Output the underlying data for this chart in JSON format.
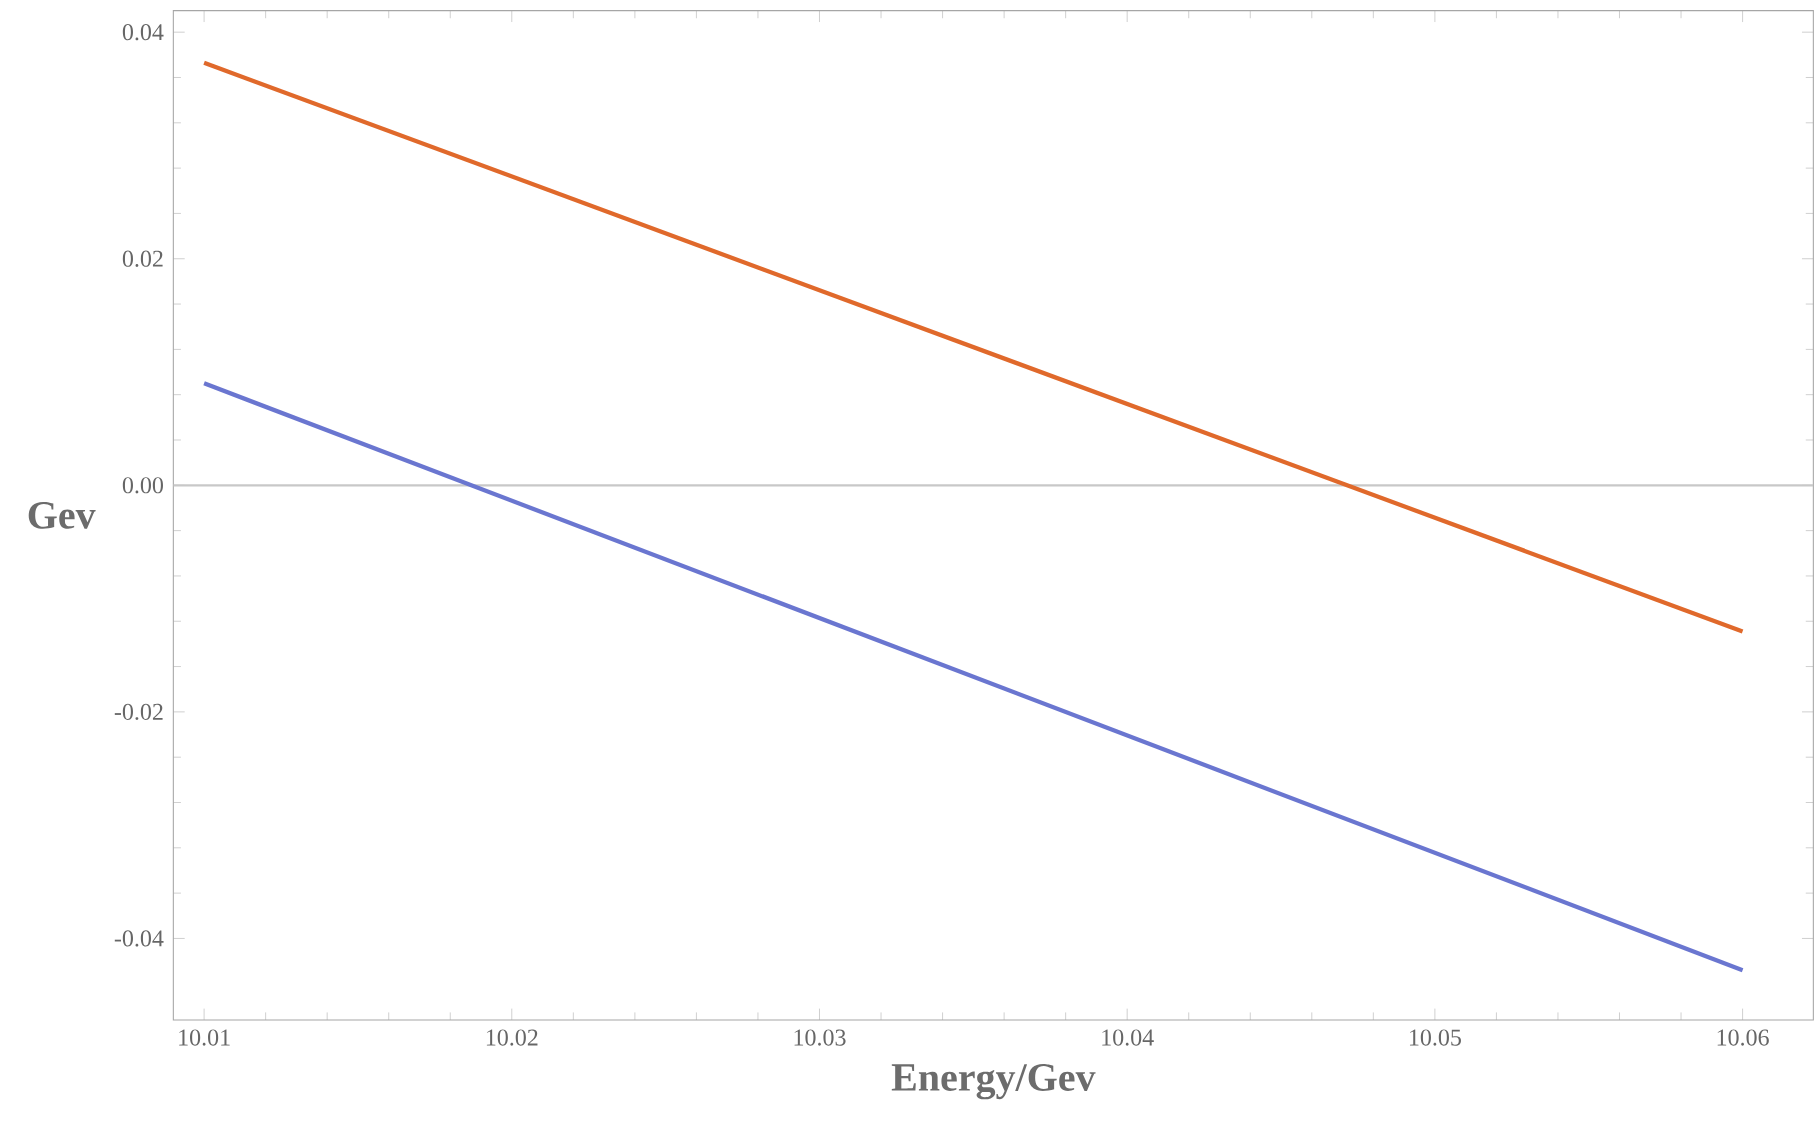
{
  "chart_data": {
    "type": "line",
    "xlabel": "Energy/Gev",
    "ylabel": "Gev",
    "x": [
      10.01,
      10.06
    ],
    "series": [
      {
        "color": "#e0692b",
        "values": [
          0.0373,
          -0.0129
        ]
      },
      {
        "color": "#6a76d0",
        "values": [
          0.009,
          -0.0428
        ]
      }
    ],
    "xlim": [
      10.009,
      10.0623
    ],
    "ylim": [
      -0.0472,
      0.0419
    ],
    "xticks": [
      {
        "value": 10.01,
        "label": "10.01"
      },
      {
        "value": 10.02,
        "label": "10.02"
      },
      {
        "value": 10.03,
        "label": "10.03"
      },
      {
        "value": 10.04,
        "label": "10.04"
      },
      {
        "value": 10.05,
        "label": "10.05"
      },
      {
        "value": 10.06,
        "label": "10.06"
      }
    ],
    "yticks": [
      {
        "value": -0.04,
        "label": "-0.04"
      },
      {
        "value": -0.02,
        "label": "-0.02"
      },
      {
        "value": 0,
        "label": "0.00"
      },
      {
        "value": 0.02,
        "label": "0.02"
      },
      {
        "value": 0.04,
        "label": "0.04"
      }
    ],
    "ref_lines": [
      {
        "axis": "y",
        "value": 0,
        "color": "#c8c8c8"
      }
    ],
    "grid": false,
    "marker": "none",
    "line_style": "solid"
  }
}
